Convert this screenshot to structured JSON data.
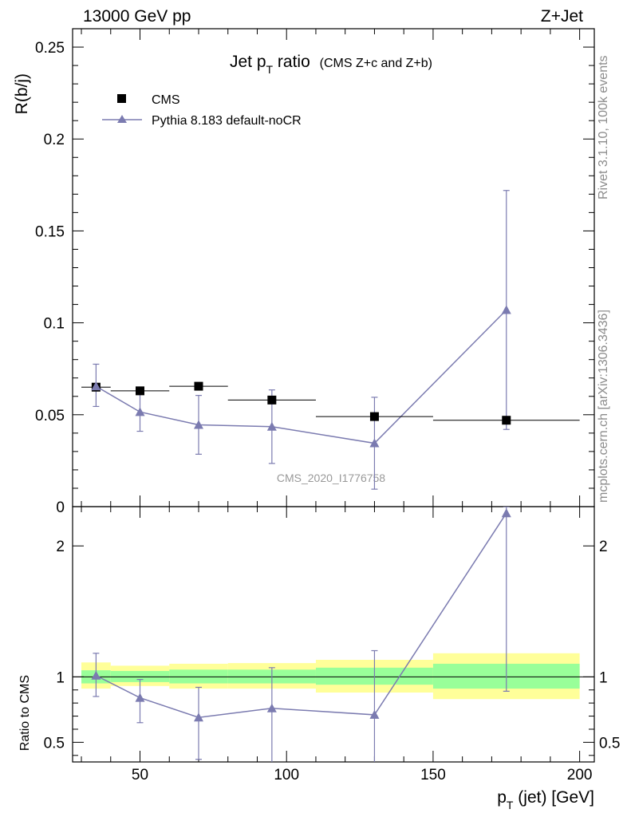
{
  "header": {
    "left_label": "13000 GeV pp",
    "right_label": "Z+Jet"
  },
  "side_labels": {
    "rivet": "Rivet 3.1.10,  100k events",
    "mcplots": "mcplots.cern.ch [arXiv:1306.3436]"
  },
  "colors": {
    "data": "#000000",
    "mc": "#7b7bb0",
    "band_inner": "#99ff99",
    "band_outer": "#ffff99"
  },
  "chart_data": [
    {
      "type": "scatter",
      "title_main": "Jet p",
      "title_sub": "T",
      "title_rest": " ratio",
      "title_note": "(CMS  Z+c and Z+b)",
      "ylabel": "R(b/j)",
      "watermark": "CMS_2020_I1776758",
      "xlim": [
        27,
        205
      ],
      "ylim": [
        0,
        0.26
      ],
      "yticks": [
        0,
        0.05,
        0.1,
        0.15,
        0.2,
        0.25
      ],
      "ytick_labels": [
        "0",
        "0.05",
        "0.1",
        "0.15",
        "0.2",
        "0.25"
      ],
      "legend": [
        "CMS",
        "Pythia 8.183 default-noCR"
      ],
      "legend_position": "top-left",
      "series": [
        {
          "name": "CMS",
          "marker": "square",
          "x": [
            35,
            50,
            70,
            95,
            130,
            175
          ],
          "xerr": [
            [
              30,
              40
            ],
            [
              40,
              60
            ],
            [
              60,
              80
            ],
            [
              80,
              110
            ],
            [
              110,
              150
            ],
            [
              150,
              200
            ]
          ],
          "y": [
            0.065,
            0.063,
            0.0655,
            0.058,
            0.049,
            0.047
          ]
        },
        {
          "name": "Pythia 8.183 default-noCR",
          "marker": "triangle",
          "x": [
            35,
            50,
            70,
            95,
            130,
            175
          ],
          "y": [
            0.0655,
            0.0515,
            0.0445,
            0.0435,
            0.0345,
            0.107
          ],
          "yerr_low": [
            0.0545,
            0.041,
            0.0285,
            0.0235,
            0.0095,
            0.042
          ],
          "yerr_high": [
            0.0775,
            0.0625,
            0.0605,
            0.0635,
            0.0595,
            0.172
          ]
        }
      ]
    },
    {
      "type": "line",
      "ylabel": "Ratio to CMS",
      "xlabel_main": "p",
      "xlabel_sub": "T",
      "xlabel_rest": " (jet) [GeV]",
      "xlim": [
        27,
        205
      ],
      "ylim": [
        0.35,
        2.3
      ],
      "xticks": [
        50,
        100,
        150,
        200
      ],
      "xtick_labels": [
        "50",
        "100",
        "150",
        "200"
      ],
      "yticks": [
        0.5,
        1,
        2
      ],
      "ytick_labels": [
        "0.5",
        "1",
        "2"
      ],
      "reference_line": 1,
      "bands": [
        {
          "x": [
            30,
            40
          ],
          "inner": [
            0.95,
            1.05
          ],
          "outer": [
            0.91,
            1.11
          ]
        },
        {
          "x": [
            40,
            60
          ],
          "inner": [
            0.96,
            1.045
          ],
          "outer": [
            0.93,
            1.085
          ]
        },
        {
          "x": [
            60,
            80
          ],
          "inner": [
            0.95,
            1.055
          ],
          "outer": [
            0.91,
            1.1
          ]
        },
        {
          "x": [
            80,
            110
          ],
          "inner": [
            0.95,
            1.055
          ],
          "outer": [
            0.91,
            1.105
          ]
        },
        {
          "x": [
            110,
            150
          ],
          "inner": [
            0.94,
            1.07
          ],
          "outer": [
            0.88,
            1.13
          ]
        },
        {
          "x": [
            150,
            200
          ],
          "inner": [
            0.91,
            1.1
          ],
          "outer": [
            0.83,
            1.18
          ]
        }
      ],
      "series": [
        {
          "name": "Pythia 8.183 default-noCR",
          "x": [
            35,
            50,
            70,
            95,
            130,
            175
          ],
          "y": [
            1.01,
            0.84,
            0.69,
            0.76,
            0.71,
            2.25
          ],
          "yerr_low": [
            0.85,
            0.65,
            0.37,
            0.33,
            0.3,
            0.89
          ],
          "yerr_high": [
            1.18,
            0.98,
            0.92,
            1.07,
            1.2,
            2.3
          ]
        }
      ]
    }
  ]
}
